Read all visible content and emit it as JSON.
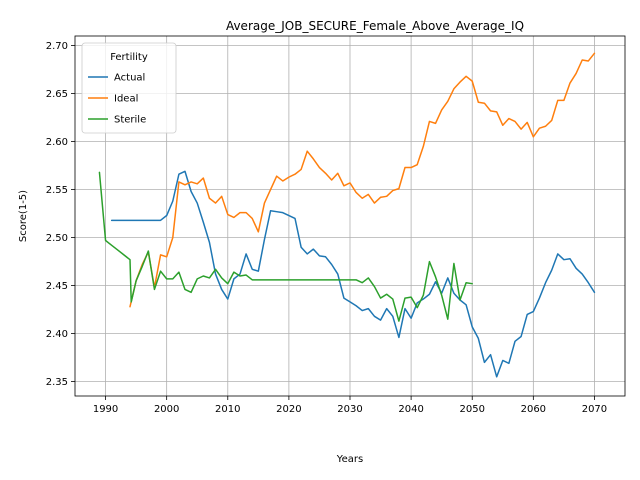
{
  "chart_data": {
    "type": "line",
    "title": "Average_JOB_SECURE_Female_Above_Average_IQ",
    "xlabel": "Years",
    "ylabel": "Score(1-5)",
    "xlim": [
      1985,
      2075
    ],
    "ylim": [
      2.335,
      2.71
    ],
    "x_ticks": [
      1990,
      2000,
      2010,
      2020,
      2030,
      2040,
      2050,
      2060,
      2070
    ],
    "x_tick_labels": [
      "1990",
      "2000",
      "2010",
      "2020",
      "2030",
      "2040",
      "2050",
      "2060",
      "2070"
    ],
    "y_ticks": [
      2.35,
      2.4,
      2.45,
      2.5,
      2.55,
      2.6,
      2.65,
      2.7
    ],
    "y_tick_labels": [
      "2.35",
      "2.40",
      "2.45",
      "2.50",
      "2.55",
      "2.60",
      "2.65",
      "2.70"
    ],
    "grid": true,
    "legend": {
      "title": "Fertility",
      "position": "top-left"
    },
    "series": [
      {
        "name": "Actual",
        "color": "#1f77b4",
        "points": [
          [
            1991,
            2.518
          ],
          [
            1992,
            2.518
          ],
          [
            1993,
            2.518
          ],
          [
            1994,
            2.518
          ],
          [
            1995,
            2.518
          ],
          [
            1996,
            2.518
          ],
          [
            1997,
            2.518
          ],
          [
            1998,
            2.518
          ],
          [
            1999,
            2.518
          ],
          [
            2000,
            2.523
          ],
          [
            2001,
            2.538
          ],
          [
            2002,
            2.566
          ],
          [
            2003,
            2.569
          ],
          [
            2004,
            2.548
          ],
          [
            2005,
            2.536
          ],
          [
            2006,
            2.516
          ],
          [
            2007,
            2.495
          ],
          [
            2008,
            2.462
          ],
          [
            2009,
            2.446
          ],
          [
            2010,
            2.436
          ],
          [
            2011,
            2.457
          ],
          [
            2012,
            2.462
          ],
          [
            2013,
            2.483
          ],
          [
            2014,
            2.467
          ],
          [
            2015,
            2.465
          ],
          [
            2016,
            2.498
          ],
          [
            2017,
            2.528
          ],
          [
            2018,
            2.527
          ],
          [
            2019,
            2.526
          ],
          [
            2020,
            2.523
          ],
          [
            2021,
            2.52
          ],
          [
            2022,
            2.49
          ],
          [
            2023,
            2.483
          ],
          [
            2024,
            2.488
          ],
          [
            2025,
            2.481
          ],
          [
            2026,
            2.48
          ],
          [
            2027,
            2.472
          ],
          [
            2028,
            2.462
          ],
          [
            2029,
            2.437
          ],
          [
            2030,
            2.433
          ],
          [
            2031,
            2.429
          ],
          [
            2032,
            2.424
          ],
          [
            2033,
            2.426
          ],
          [
            2034,
            2.418
          ],
          [
            2035,
            2.414
          ],
          [
            2036,
            2.426
          ],
          [
            2037,
            2.418
          ],
          [
            2038,
            2.396
          ],
          [
            2039,
            2.426
          ],
          [
            2040,
            2.416
          ],
          [
            2041,
            2.432
          ],
          [
            2042,
            2.436
          ],
          [
            2043,
            2.441
          ],
          [
            2044,
            2.454
          ],
          [
            2045,
            2.442
          ],
          [
            2046,
            2.458
          ],
          [
            2047,
            2.442
          ],
          [
            2048,
            2.435
          ],
          [
            2049,
            2.43
          ],
          [
            2050,
            2.407
          ],
          [
            2051,
            2.395
          ],
          [
            2052,
            2.37
          ],
          [
            2053,
            2.378
          ],
          [
            2054,
            2.355
          ],
          [
            2055,
            2.372
          ],
          [
            2056,
            2.369
          ],
          [
            2057,
            2.392
          ],
          [
            2058,
            2.397
          ],
          [
            2059,
            2.42
          ],
          [
            2060,
            2.423
          ],
          [
            2061,
            2.437
          ],
          [
            2062,
            2.453
          ],
          [
            2063,
            2.466
          ],
          [
            2064,
            2.483
          ],
          [
            2065,
            2.477
          ],
          [
            2066,
            2.478
          ],
          [
            2067,
            2.468
          ],
          [
            2068,
            2.462
          ],
          [
            2069,
            2.453
          ],
          [
            2070,
            2.443
          ]
        ]
      },
      {
        "name": "Ideal",
        "color": "#ff7f0e",
        "points": [
          [
            1994,
            2.428
          ],
          [
            1995,
            2.455
          ],
          [
            1996,
            2.472
          ],
          [
            1997,
            2.485
          ],
          [
            1998,
            2.448
          ],
          [
            1999,
            2.482
          ],
          [
            2000,
            2.48
          ],
          [
            2001,
            2.5
          ],
          [
            2002,
            2.558
          ],
          [
            2003,
            2.555
          ],
          [
            2004,
            2.558
          ],
          [
            2005,
            2.556
          ],
          [
            2006,
            2.562
          ],
          [
            2007,
            2.541
          ],
          [
            2008,
            2.536
          ],
          [
            2009,
            2.543
          ],
          [
            2010,
            2.524
          ],
          [
            2011,
            2.521
          ],
          [
            2012,
            2.526
          ],
          [
            2013,
            2.526
          ],
          [
            2014,
            2.52
          ],
          [
            2015,
            2.506
          ],
          [
            2016,
            2.536
          ],
          [
            2017,
            2.55
          ],
          [
            2018,
            2.564
          ],
          [
            2019,
            2.559
          ],
          [
            2020,
            2.563
          ],
          [
            2021,
            2.566
          ],
          [
            2022,
            2.571
          ],
          [
            2023,
            2.59
          ],
          [
            2024,
            2.582
          ],
          [
            2025,
            2.573
          ],
          [
            2026,
            2.567
          ],
          [
            2027,
            2.56
          ],
          [
            2028,
            2.567
          ],
          [
            2029,
            2.554
          ],
          [
            2030,
            2.557
          ],
          [
            2031,
            2.547
          ],
          [
            2032,
            2.541
          ],
          [
            2033,
            2.545
          ],
          [
            2034,
            2.536
          ],
          [
            2035,
            2.542
          ],
          [
            2036,
            2.543
          ],
          [
            2037,
            2.549
          ],
          [
            2038,
            2.551
          ],
          [
            2039,
            2.573
          ],
          [
            2040,
            2.573
          ],
          [
            2041,
            2.576
          ],
          [
            2042,
            2.595
          ],
          [
            2043,
            2.621
          ],
          [
            2044,
            2.619
          ],
          [
            2045,
            2.633
          ],
          [
            2046,
            2.642
          ],
          [
            2047,
            2.655
          ],
          [
            2048,
            2.662
          ],
          [
            2049,
            2.668
          ],
          [
            2050,
            2.663
          ],
          [
            2051,
            2.641
          ],
          [
            2052,
            2.64
          ],
          [
            2053,
            2.632
          ],
          [
            2054,
            2.631
          ],
          [
            2055,
            2.617
          ],
          [
            2056,
            2.624
          ],
          [
            2057,
            2.621
          ],
          [
            2058,
            2.613
          ],
          [
            2059,
            2.62
          ],
          [
            2060,
            2.605
          ],
          [
            2061,
            2.614
          ],
          [
            2062,
            2.616
          ],
          [
            2063,
            2.622
          ],
          [
            2064,
            2.643
          ],
          [
            2065,
            2.643
          ],
          [
            2066,
            2.661
          ],
          [
            2067,
            2.671
          ],
          [
            2068,
            2.685
          ],
          [
            2069,
            2.684
          ],
          [
            2070,
            2.692
          ]
        ]
      },
      {
        "name": "Sterile",
        "color": "#2ca02c",
        "points": [
          [
            1989,
            2.568
          ],
          [
            1990,
            2.497
          ],
          [
            1991,
            2.492
          ],
          [
            1992,
            2.487
          ],
          [
            1993,
            2.482
          ],
          [
            1994,
            2.477
          ],
          [
            1994.2,
            2.433
          ],
          [
            1995,
            2.455
          ],
          [
            1996,
            2.47
          ],
          [
            1997,
            2.486
          ],
          [
            1998,
            2.446
          ],
          [
            1999,
            2.465
          ],
          [
            2000,
            2.457
          ],
          [
            2001,
            2.457
          ],
          [
            2002,
            2.464
          ],
          [
            2003,
            2.446
          ],
          [
            2004,
            2.443
          ],
          [
            2005,
            2.457
          ],
          [
            2006,
            2.46
          ],
          [
            2007,
            2.458
          ],
          [
            2008,
            2.467
          ],
          [
            2009,
            2.458
          ],
          [
            2010,
            2.452
          ],
          [
            2011,
            2.464
          ],
          [
            2012,
            2.46
          ],
          [
            2013,
            2.461
          ],
          [
            2014,
            2.456
          ],
          [
            2015,
            2.456
          ],
          [
            2016,
            2.456
          ],
          [
            2017,
            2.456
          ],
          [
            2018,
            2.456
          ],
          [
            2019,
            2.456
          ],
          [
            2020,
            2.456
          ],
          [
            2021,
            2.456
          ],
          [
            2022,
            2.456
          ],
          [
            2023,
            2.456
          ],
          [
            2024,
            2.456
          ],
          [
            2025,
            2.456
          ],
          [
            2026,
            2.456
          ],
          [
            2027,
            2.456
          ],
          [
            2028,
            2.456
          ],
          [
            2029,
            2.456
          ],
          [
            2030,
            2.456
          ],
          [
            2031,
            2.456
          ],
          [
            2032,
            2.453
          ],
          [
            2033,
            2.458
          ],
          [
            2034,
            2.449
          ],
          [
            2035,
            2.437
          ],
          [
            2036,
            2.441
          ],
          [
            2037,
            2.436
          ],
          [
            2038,
            2.413
          ],
          [
            2039,
            2.437
          ],
          [
            2040,
            2.438
          ],
          [
            2041,
            2.427
          ],
          [
            2042,
            2.44
          ],
          [
            2043,
            2.475
          ],
          [
            2044,
            2.459
          ],
          [
            2045,
            2.44
          ],
          [
            2046,
            2.415
          ],
          [
            2047,
            2.473
          ],
          [
            2048,
            2.435
          ],
          [
            2049,
            2.453
          ],
          [
            2050,
            2.452
          ]
        ]
      }
    ]
  }
}
